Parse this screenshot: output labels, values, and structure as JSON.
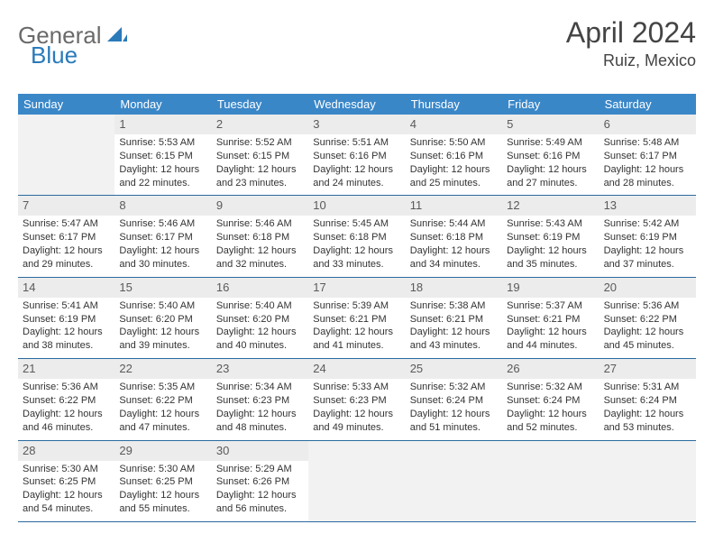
{
  "logo": {
    "word1": "General",
    "word2": "Blue"
  },
  "title": "April 2024",
  "location": "Ruiz, Mexico",
  "colors": {
    "header_bg": "#3a87c8",
    "header_text": "#ffffff",
    "daynum_bg": "#ececec",
    "daynum_text": "#5a5a5a",
    "border": "#2a6aa0",
    "body_text": "#333333",
    "empty_bg": "#f2f2f2",
    "title_text": "#444444",
    "logo_gray": "#6a6a6a",
    "logo_blue": "#2a7ab9"
  },
  "day_names": [
    "Sunday",
    "Monday",
    "Tuesday",
    "Wednesday",
    "Thursday",
    "Friday",
    "Saturday"
  ],
  "weeks": [
    [
      null,
      {
        "n": "1",
        "sr": "Sunrise: 5:53 AM",
        "ss": "Sunset: 6:15 PM",
        "d1": "Daylight: 12 hours",
        "d2": "and 22 minutes."
      },
      {
        "n": "2",
        "sr": "Sunrise: 5:52 AM",
        "ss": "Sunset: 6:15 PM",
        "d1": "Daylight: 12 hours",
        "d2": "and 23 minutes."
      },
      {
        "n": "3",
        "sr": "Sunrise: 5:51 AM",
        "ss": "Sunset: 6:16 PM",
        "d1": "Daylight: 12 hours",
        "d2": "and 24 minutes."
      },
      {
        "n": "4",
        "sr": "Sunrise: 5:50 AM",
        "ss": "Sunset: 6:16 PM",
        "d1": "Daylight: 12 hours",
        "d2": "and 25 minutes."
      },
      {
        "n": "5",
        "sr": "Sunrise: 5:49 AM",
        "ss": "Sunset: 6:16 PM",
        "d1": "Daylight: 12 hours",
        "d2": "and 27 minutes."
      },
      {
        "n": "6",
        "sr": "Sunrise: 5:48 AM",
        "ss": "Sunset: 6:17 PM",
        "d1": "Daylight: 12 hours",
        "d2": "and 28 minutes."
      }
    ],
    [
      {
        "n": "7",
        "sr": "Sunrise: 5:47 AM",
        "ss": "Sunset: 6:17 PM",
        "d1": "Daylight: 12 hours",
        "d2": "and 29 minutes."
      },
      {
        "n": "8",
        "sr": "Sunrise: 5:46 AM",
        "ss": "Sunset: 6:17 PM",
        "d1": "Daylight: 12 hours",
        "d2": "and 30 minutes."
      },
      {
        "n": "9",
        "sr": "Sunrise: 5:46 AM",
        "ss": "Sunset: 6:18 PM",
        "d1": "Daylight: 12 hours",
        "d2": "and 32 minutes."
      },
      {
        "n": "10",
        "sr": "Sunrise: 5:45 AM",
        "ss": "Sunset: 6:18 PM",
        "d1": "Daylight: 12 hours",
        "d2": "and 33 minutes."
      },
      {
        "n": "11",
        "sr": "Sunrise: 5:44 AM",
        "ss": "Sunset: 6:18 PM",
        "d1": "Daylight: 12 hours",
        "d2": "and 34 minutes."
      },
      {
        "n": "12",
        "sr": "Sunrise: 5:43 AM",
        "ss": "Sunset: 6:19 PM",
        "d1": "Daylight: 12 hours",
        "d2": "and 35 minutes."
      },
      {
        "n": "13",
        "sr": "Sunrise: 5:42 AM",
        "ss": "Sunset: 6:19 PM",
        "d1": "Daylight: 12 hours",
        "d2": "and 37 minutes."
      }
    ],
    [
      {
        "n": "14",
        "sr": "Sunrise: 5:41 AM",
        "ss": "Sunset: 6:19 PM",
        "d1": "Daylight: 12 hours",
        "d2": "and 38 minutes."
      },
      {
        "n": "15",
        "sr": "Sunrise: 5:40 AM",
        "ss": "Sunset: 6:20 PM",
        "d1": "Daylight: 12 hours",
        "d2": "and 39 minutes."
      },
      {
        "n": "16",
        "sr": "Sunrise: 5:40 AM",
        "ss": "Sunset: 6:20 PM",
        "d1": "Daylight: 12 hours",
        "d2": "and 40 minutes."
      },
      {
        "n": "17",
        "sr": "Sunrise: 5:39 AM",
        "ss": "Sunset: 6:21 PM",
        "d1": "Daylight: 12 hours",
        "d2": "and 41 minutes."
      },
      {
        "n": "18",
        "sr": "Sunrise: 5:38 AM",
        "ss": "Sunset: 6:21 PM",
        "d1": "Daylight: 12 hours",
        "d2": "and 43 minutes."
      },
      {
        "n": "19",
        "sr": "Sunrise: 5:37 AM",
        "ss": "Sunset: 6:21 PM",
        "d1": "Daylight: 12 hours",
        "d2": "and 44 minutes."
      },
      {
        "n": "20",
        "sr": "Sunrise: 5:36 AM",
        "ss": "Sunset: 6:22 PM",
        "d1": "Daylight: 12 hours",
        "d2": "and 45 minutes."
      }
    ],
    [
      {
        "n": "21",
        "sr": "Sunrise: 5:36 AM",
        "ss": "Sunset: 6:22 PM",
        "d1": "Daylight: 12 hours",
        "d2": "and 46 minutes."
      },
      {
        "n": "22",
        "sr": "Sunrise: 5:35 AM",
        "ss": "Sunset: 6:22 PM",
        "d1": "Daylight: 12 hours",
        "d2": "and 47 minutes."
      },
      {
        "n": "23",
        "sr": "Sunrise: 5:34 AM",
        "ss": "Sunset: 6:23 PM",
        "d1": "Daylight: 12 hours",
        "d2": "and 48 minutes."
      },
      {
        "n": "24",
        "sr": "Sunrise: 5:33 AM",
        "ss": "Sunset: 6:23 PM",
        "d1": "Daylight: 12 hours",
        "d2": "and 49 minutes."
      },
      {
        "n": "25",
        "sr": "Sunrise: 5:32 AM",
        "ss": "Sunset: 6:24 PM",
        "d1": "Daylight: 12 hours",
        "d2": "and 51 minutes."
      },
      {
        "n": "26",
        "sr": "Sunrise: 5:32 AM",
        "ss": "Sunset: 6:24 PM",
        "d1": "Daylight: 12 hours",
        "d2": "and 52 minutes."
      },
      {
        "n": "27",
        "sr": "Sunrise: 5:31 AM",
        "ss": "Sunset: 6:24 PM",
        "d1": "Daylight: 12 hours",
        "d2": "and 53 minutes."
      }
    ],
    [
      {
        "n": "28",
        "sr": "Sunrise: 5:30 AM",
        "ss": "Sunset: 6:25 PM",
        "d1": "Daylight: 12 hours",
        "d2": "and 54 minutes."
      },
      {
        "n": "29",
        "sr": "Sunrise: 5:30 AM",
        "ss": "Sunset: 6:25 PM",
        "d1": "Daylight: 12 hours",
        "d2": "and 55 minutes."
      },
      {
        "n": "30",
        "sr": "Sunrise: 5:29 AM",
        "ss": "Sunset: 6:26 PM",
        "d1": "Daylight: 12 hours",
        "d2": "and 56 minutes."
      },
      null,
      null,
      null,
      null
    ]
  ]
}
